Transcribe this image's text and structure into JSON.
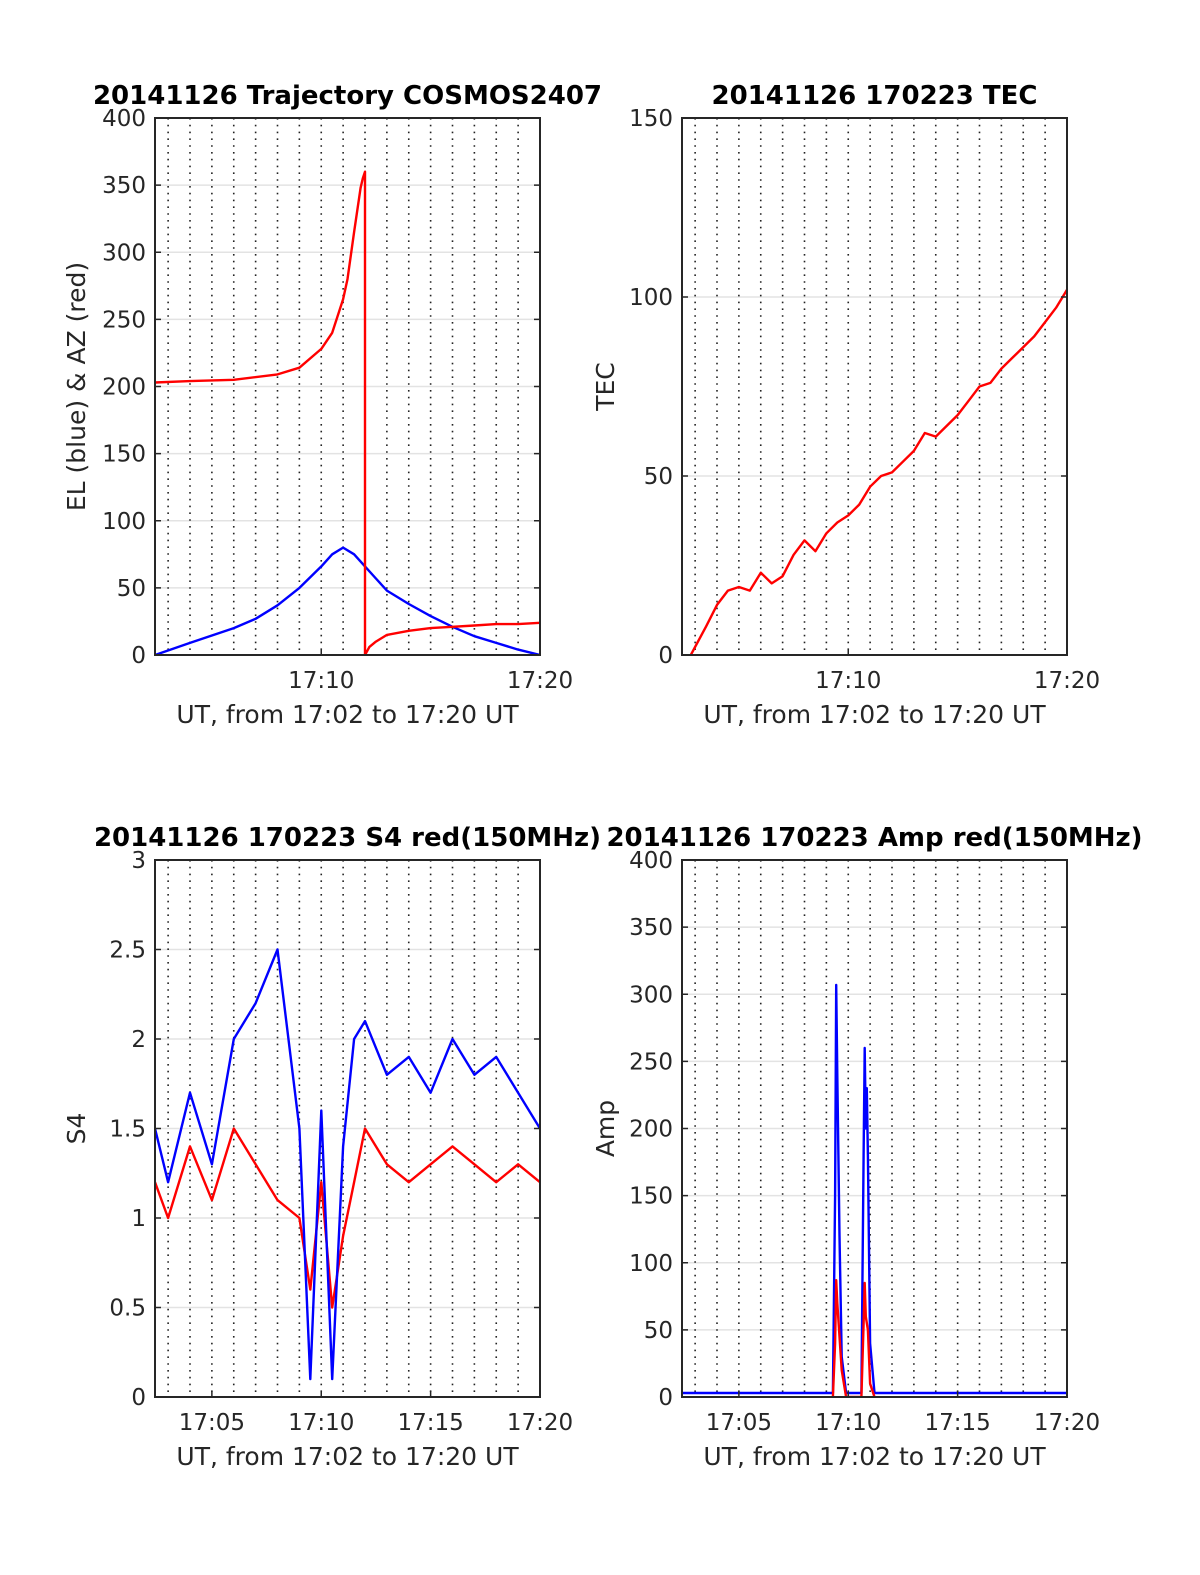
{
  "chart_data": [
    {
      "type": "line",
      "title": "20141126 Trajectory COSMOS2407",
      "xlabel": "UT, from 17:02 to 17:20 UT",
      "ylabel": "EL (blue) & AZ (red)",
      "xlim": [
        2.4,
        20
      ],
      "ylim": [
        0,
        400
      ],
      "xticks": [
        {
          "v": 10,
          "label": "17:10"
        },
        {
          "v": 20,
          "label": "17:20"
        }
      ],
      "yticks": [
        {
          "v": 0,
          "label": "0"
        },
        {
          "v": 50,
          "label": "50"
        },
        {
          "v": 100,
          "label": "100"
        },
        {
          "v": 150,
          "label": "150"
        },
        {
          "v": 200,
          "label": "200"
        },
        {
          "v": 250,
          "label": "250"
        },
        {
          "v": 300,
          "label": "300"
        },
        {
          "v": 350,
          "label": "350"
        },
        {
          "v": 400,
          "label": "400"
        }
      ],
      "grid": true,
      "series": [
        {
          "color": "#0000ff",
          "x": [
            2.4,
            4,
            6,
            7,
            8,
            9,
            10,
            10.5,
            11,
            11.5,
            12,
            12.5,
            13,
            14,
            15,
            16,
            17,
            18,
            19,
            20
          ],
          "y": [
            0,
            9,
            20,
            27,
            37,
            50,
            66,
            75,
            80,
            75,
            66,
            57,
            48,
            38,
            29,
            21,
            14,
            9,
            4,
            0
          ]
        },
        {
          "color": "#ff0000",
          "x": [
            2.4,
            4,
            6,
            8,
            9,
            10,
            10.5,
            11,
            11.2,
            11.5,
            11.8,
            11.9,
            12,
            12,
            12.2,
            12.5,
            13,
            14,
            15,
            16,
            17,
            18,
            19,
            20
          ],
          "y": [
            203,
            204,
            205,
            209,
            214,
            228,
            240,
            265,
            280,
            315,
            348,
            355,
            360,
            0,
            6,
            10,
            15,
            18,
            20,
            21,
            22,
            23,
            23,
            24
          ]
        }
      ]
    },
    {
      "type": "line",
      "title": "20141126 170223 TEC",
      "xlabel": "UT, from 17:02 to 17:20 UT",
      "ylabel": "TEC",
      "xlim": [
        2.4,
        20
      ],
      "ylim": [
        0,
        150
      ],
      "xticks": [
        {
          "v": 10,
          "label": "17:10"
        },
        {
          "v": 20,
          "label": "17:20"
        }
      ],
      "yticks": [
        {
          "v": 0,
          "label": "0"
        },
        {
          "v": 50,
          "label": "50"
        },
        {
          "v": 100,
          "label": "100"
        },
        {
          "v": 150,
          "label": "150"
        }
      ],
      "grid": true,
      "series": [
        {
          "color": "#ff0000",
          "x": [
            2.8,
            3.5,
            4,
            4.5,
            5,
            5.5,
            6,
            6.5,
            7,
            7.5,
            8,
            8.5,
            9,
            9.5,
            10,
            10.5,
            11,
            11.5,
            12,
            12.5,
            13,
            13.5,
            14,
            14.5,
            15,
            15.5,
            16,
            16.5,
            17,
            17.5,
            18,
            18.5,
            19,
            19.5,
            20
          ],
          "y": [
            0,
            8,
            14,
            18,
            19,
            18,
            23,
            20,
            22,
            28,
            32,
            29,
            34,
            37,
            39,
            42,
            47,
            50,
            51,
            54,
            57,
            62,
            61,
            64,
            67,
            71,
            75,
            76,
            80,
            83,
            86,
            89,
            93,
            97,
            102
          ]
        }
      ]
    },
    {
      "type": "line",
      "title": "20141126 170223 S4 red(150MHz)",
      "xlabel": "UT, from 17:02 to 17:20 UT",
      "ylabel": "S4",
      "xlim": [
        2.4,
        20
      ],
      "ylim": [
        0,
        3
      ],
      "xticks": [
        {
          "v": 5,
          "label": "17:05"
        },
        {
          "v": 10,
          "label": "17:10"
        },
        {
          "v": 15,
          "label": "17:15"
        },
        {
          "v": 20,
          "label": "17:20"
        }
      ],
      "yticks": [
        {
          "v": 0,
          "label": "0"
        },
        {
          "v": 0.5,
          "label": "0.5"
        },
        {
          "v": 1,
          "label": "1"
        },
        {
          "v": 1.5,
          "label": "1.5"
        },
        {
          "v": 2,
          "label": "2"
        },
        {
          "v": 2.5,
          "label": "2.5"
        },
        {
          "v": 3,
          "label": "3"
        }
      ],
      "grid": true,
      "series": [
        {
          "color": "#ff0000",
          "x": [
            2.4,
            3,
            4,
            5,
            6,
            7,
            8,
            9,
            9.5,
            10,
            10.5,
            11,
            11.5,
            12,
            13,
            14,
            15,
            16,
            17,
            18,
            19,
            20
          ],
          "y": [
            1.2,
            1.0,
            1.4,
            1.1,
            1.5,
            1.3,
            1.1,
            1.0,
            0.6,
            1.2,
            0.5,
            0.9,
            1.2,
            1.5,
            1.3,
            1.2,
            1.3,
            1.4,
            1.3,
            1.2,
            1.3,
            1.2
          ]
        },
        {
          "color": "#0000ff",
          "x": [
            2.4,
            3,
            4,
            5,
            6,
            7,
            8,
            9,
            9.5,
            10,
            10.5,
            11,
            11.5,
            12,
            13,
            14,
            15,
            16,
            17,
            18,
            19,
            20
          ],
          "y": [
            1.5,
            1.2,
            1.7,
            1.3,
            2.0,
            2.2,
            2.5,
            1.5,
            0.1,
            1.6,
            0.1,
            1.4,
            2.0,
            2.1,
            1.8,
            1.9,
            1.7,
            2.0,
            1.8,
            1.9,
            1.7,
            1.5
          ]
        }
      ]
    },
    {
      "type": "line",
      "title": "20141126 170223 Amp red(150MHz)",
      "xlabel": "UT, from 17:02 to 17:20 UT",
      "ylabel": "Amp",
      "xlim": [
        2.4,
        20
      ],
      "ylim": [
        0,
        400
      ],
      "xticks": [
        {
          "v": 5,
          "label": "17:05"
        },
        {
          "v": 10,
          "label": "17:10"
        },
        {
          "v": 15,
          "label": "17:15"
        },
        {
          "v": 20,
          "label": "17:20"
        }
      ],
      "yticks": [
        {
          "v": 0,
          "label": "0"
        },
        {
          "v": 50,
          "label": "50"
        },
        {
          "v": 100,
          "label": "100"
        },
        {
          "v": 150,
          "label": "150"
        },
        {
          "v": 200,
          "label": "200"
        },
        {
          "v": 250,
          "label": "250"
        },
        {
          "v": 300,
          "label": "300"
        },
        {
          "v": 350,
          "label": "350"
        },
        {
          "v": 400,
          "label": "400"
        }
      ],
      "grid": true,
      "series": [
        {
          "color": "#0000ff",
          "x": [
            2.4,
            4,
            6,
            8,
            9.3,
            9.4,
            9.45,
            9.5,
            9.55,
            9.6,
            9.7,
            9.9,
            10.6,
            10.7,
            10.75,
            10.8,
            10.85,
            10.9,
            11.0,
            11.2,
            13,
            15,
            17,
            20
          ],
          "y": [
            3,
            3,
            3,
            3,
            3,
            150,
            307,
            240,
            180,
            120,
            30,
            3,
            3,
            180,
            260,
            200,
            230,
            180,
            40,
            3,
            3,
            3,
            3,
            3
          ]
        },
        {
          "color": "#ff0000",
          "x": [
            9.3,
            9.4,
            9.45,
            9.5,
            9.6,
            9.7,
            9.9,
            10.6,
            10.7,
            10.75,
            10.8,
            10.9,
            11.0,
            11.2
          ],
          "y": [
            0,
            40,
            87,
            70,
            45,
            20,
            0,
            0,
            55,
            85,
            60,
            50,
            10,
            0
          ]
        }
      ]
    }
  ]
}
